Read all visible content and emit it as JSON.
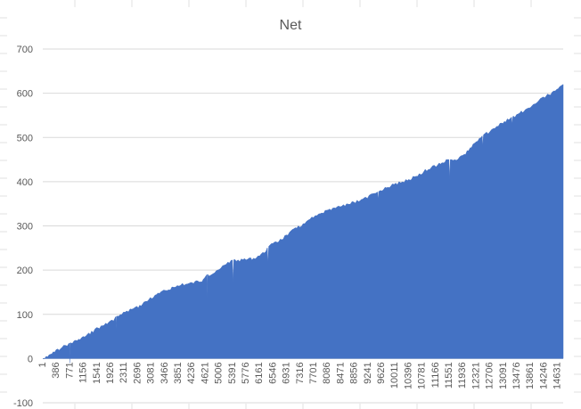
{
  "colors": {
    "series": "#4472c4",
    "gridline": "#d9d9d9",
    "sheet_grid": "#e2e2e2",
    "text": "#595959"
  },
  "chart_data": {
    "type": "area",
    "title": "Net",
    "xlabel": "",
    "ylabel": "",
    "ylim": [
      -100,
      700
    ],
    "y_ticks": [
      -100,
      0,
      100,
      200,
      300,
      400,
      500,
      600,
      700
    ],
    "x_range": [
      1,
      14900
    ],
    "x_tick_labels": [
      "1",
      "386",
      "771",
      "1156",
      "1541",
      "1926",
      "2311",
      "2696",
      "3081",
      "3466",
      "3851",
      "4236",
      "4621",
      "5006",
      "5391",
      "5776",
      "6161",
      "6546",
      "6931",
      "7316",
      "7701",
      "8086",
      "8471",
      "8856",
      "9241",
      "9626",
      "10011",
      "10396",
      "10781",
      "11166",
      "11551",
      "11936",
      "12321",
      "12706",
      "13091",
      "13476",
      "13861",
      "14246",
      "14631"
    ],
    "grid": true,
    "legend": "none",
    "series": [
      {
        "x": [
          1,
          100,
          300,
          386,
          600,
          771,
          900,
          1156,
          1400,
          1541,
          1800,
          1926,
          2100,
          2311,
          2500,
          2696,
          2900,
          3081,
          3300,
          3466,
          3700,
          3851,
          4000,
          4236,
          4400,
          4600,
          4621,
          4700,
          5006,
          5150,
          5300,
          5391,
          5500,
          5776,
          5950,
          6161,
          6300,
          6546,
          6800,
          6931,
          7150,
          7316,
          7550,
          7701,
          7900,
          8086,
          8300,
          8471,
          8700,
          8856,
          9000,
          9241,
          9400,
          9626,
          9800,
          10011,
          10200,
          10396,
          10600,
          10781,
          10950,
          11166,
          11350,
          11551,
          11700,
          11936,
          12150,
          12321,
          12500,
          12706,
          12900,
          13091,
          13300,
          13476,
          13700,
          13861,
          14050,
          14246,
          14450,
          14631,
          14800,
          14900
        ],
        "y": [
          0,
          5,
          15,
          20,
          30,
          35,
          40,
          50,
          62,
          70,
          80,
          85,
          95,
          105,
          112,
          118,
          128,
          138,
          148,
          155,
          162,
          165,
          170,
          172,
          176,
          180,
          181,
          190,
          200,
          210,
          218,
          222,
          224,
          226,
          228,
          232,
          240,
          260,
          270,
          278,
          292,
          300,
          310,
          320,
          327,
          335,
          340,
          345,
          350,
          355,
          358,
          365,
          372,
          378,
          387,
          395,
          400,
          405,
          412,
          418,
          428,
          436,
          442,
          450,
          450,
          456,
          470,
          485,
          498,
          512,
          520,
          532,
          542,
          548,
          560,
          565,
          575,
          588,
          598,
          605,
          615,
          620
        ]
      }
    ],
    "dips": [
      {
        "x": 771,
        "y": -10
      },
      {
        "x": 2100,
        "y": 60
      },
      {
        "x": 4700,
        "y": 120
      },
      {
        "x": 5450,
        "y": 170
      },
      {
        "x": 6450,
        "y": 215
      },
      {
        "x": 9600,
        "y": 360
      },
      {
        "x": 11650,
        "y": 405
      },
      {
        "x": 12600,
        "y": 480
      },
      {
        "x": 13440,
        "y": 530
      }
    ]
  }
}
